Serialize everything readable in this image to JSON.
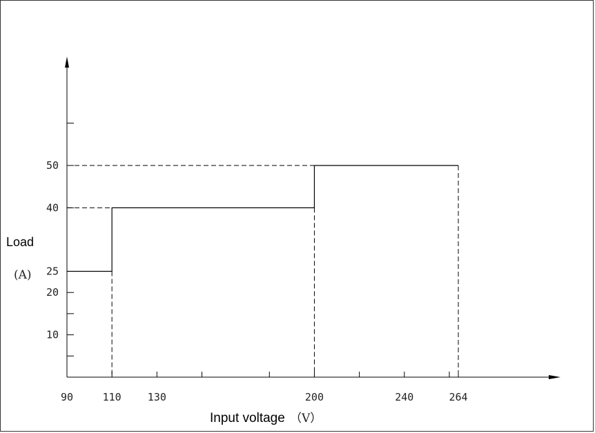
{
  "chart_data": {
    "type": "line",
    "xlabel": "Input voltage",
    "xunit": "（V）",
    "ylabel": "Load",
    "yunit": "(A)",
    "x_tick_labels": [
      "90",
      "110",
      "130",
      "200",
      "240",
      "264"
    ],
    "x_tick_values": [
      90,
      110,
      130,
      200,
      240,
      264
    ],
    "x_minor_ticks": [
      150,
      180,
      220,
      260
    ],
    "y_tick_labels": [
      "10",
      "20",
      "25",
      "40",
      "50"
    ],
    "y_tick_values": [
      10,
      20,
      25,
      40,
      50
    ],
    "y_minor_ticks": [
      5,
      15,
      60
    ],
    "xlim": [
      90,
      290
    ],
    "ylim": [
      0,
      70
    ],
    "series": [
      {
        "points": [
          [
            90,
            25
          ],
          [
            110,
            25
          ],
          [
            110,
            40
          ],
          [
            200,
            40
          ],
          [
            200,
            50
          ],
          [
            264,
            50
          ]
        ],
        "drop_lines_x": [
          110,
          200,
          264
        ],
        "guide_lines_y": [
          40,
          50
        ]
      }
    ],
    "grid": false,
    "line_color": "#000000"
  }
}
